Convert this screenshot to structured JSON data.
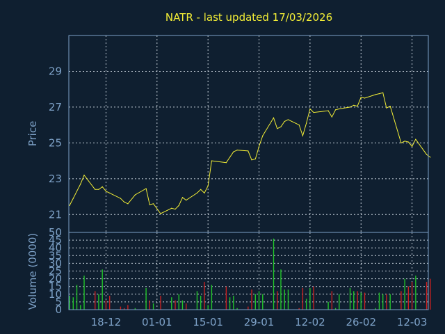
{
  "chart_data": [
    {
      "type": "line",
      "title": "NATR - last updated 17/03/2026",
      "ylabel": "Price",
      "ylim": [
        20,
        31
      ],
      "yticks": [
        21,
        23,
        25,
        27,
        29
      ],
      "grid": true,
      "line_color": "#f3ee36",
      "x_dates": [
        "2025-12-08",
        "2025-12-09",
        "2025-12-10",
        "2025-12-11",
        "2025-12-12",
        "2025-12-15",
        "2025-12-16",
        "2025-12-17",
        "2025-12-18",
        "2025-12-19",
        "2025-12-22",
        "2025-12-23",
        "2025-12-24",
        "2025-12-26",
        "2025-12-29",
        "2025-12-30",
        "2025-12-31",
        "2026-01-02",
        "2026-01-05",
        "2026-01-06",
        "2026-01-07",
        "2026-01-08",
        "2026-01-09",
        "2026-01-12",
        "2026-01-13",
        "2026-01-14",
        "2026-01-15",
        "2026-01-16",
        "2026-01-20",
        "2026-01-21",
        "2026-01-22",
        "2026-01-23",
        "2026-01-26",
        "2026-01-27",
        "2026-01-28",
        "2026-01-29",
        "2026-01-30",
        "2026-02-02",
        "2026-02-03",
        "2026-02-04",
        "2026-02-05",
        "2026-02-06",
        "2026-02-09",
        "2026-02-10",
        "2026-02-11",
        "2026-02-12",
        "2026-02-13",
        "2026-02-17",
        "2026-02-18",
        "2026-02-19",
        "2026-02-20",
        "2026-02-23",
        "2026-02-24",
        "2026-02-25",
        "2026-02-26",
        "2026-02-27",
        "2026-03-02",
        "2026-03-03",
        "2026-03-04",
        "2026-03-05",
        "2026-03-06",
        "2026-03-09",
        "2026-03-10",
        "2026-03-11",
        "2026-03-12",
        "2026-03-13",
        "2026-03-16",
        "2026-03-17"
      ],
      "close": [
        21.5,
        21.9,
        22.3,
        22.7,
        23.2,
        22.4,
        22.4,
        22.55,
        22.3,
        22.2,
        21.9,
        21.7,
        21.6,
        22.1,
        22.45,
        21.55,
        21.6,
        21.05,
        21.35,
        21.3,
        21.5,
        21.95,
        21.8,
        22.2,
        22.4,
        22.2,
        22.6,
        24.0,
        23.9,
        24.2,
        24.5,
        24.6,
        24.55,
        24.05,
        24.1,
        24.8,
        25.4,
        26.4,
        25.8,
        25.9,
        26.2,
        26.3,
        26.0,
        25.4,
        26.1,
        26.9,
        26.7,
        26.8,
        26.45,
        26.85,
        26.9,
        27.0,
        27.1,
        27.05,
        27.55,
        27.5,
        27.7,
        27.75,
        27.8,
        26.95,
        27.05,
        25.0,
        25.1,
        25.05,
        24.8,
        25.2,
        24.35,
        24.2
      ]
    },
    {
      "type": "bar",
      "ylabel": "Volume (0000)",
      "ylim": [
        0,
        50
      ],
      "yticks": [
        0,
        5,
        10,
        15,
        20,
        25,
        30,
        35,
        40,
        45,
        50
      ],
      "grid": true,
      "x_ticks": [
        "18-12",
        "01-01",
        "15-01",
        "29-01",
        "12-02",
        "26-02",
        "12-03"
      ],
      "x_tick_dates": [
        "2025-12-18",
        "2026-01-01",
        "2026-01-15",
        "2026-01-29",
        "2026-02-12",
        "2026-02-26",
        "2026-03-12"
      ],
      "up_color": "#22c42a",
      "down_color": "#c82020",
      "volume": [
        9,
        8,
        16,
        3,
        22,
        12,
        10,
        26,
        6,
        9,
        2,
        1,
        3,
        1,
        14,
        6,
        4,
        9,
        8,
        6,
        10,
        6,
        4,
        12,
        9,
        18,
        3,
        16,
        15,
        8,
        9,
        1,
        2,
        13,
        10,
        12,
        10,
        46,
        12,
        26,
        13,
        13,
        1,
        14,
        7,
        14,
        15,
        5,
        12,
        1,
        10,
        14,
        12,
        12,
        11,
        11,
        1,
        11,
        10,
        10,
        10,
        12,
        20,
        15,
        18,
        22,
        18,
        20
      ]
    }
  ]
}
